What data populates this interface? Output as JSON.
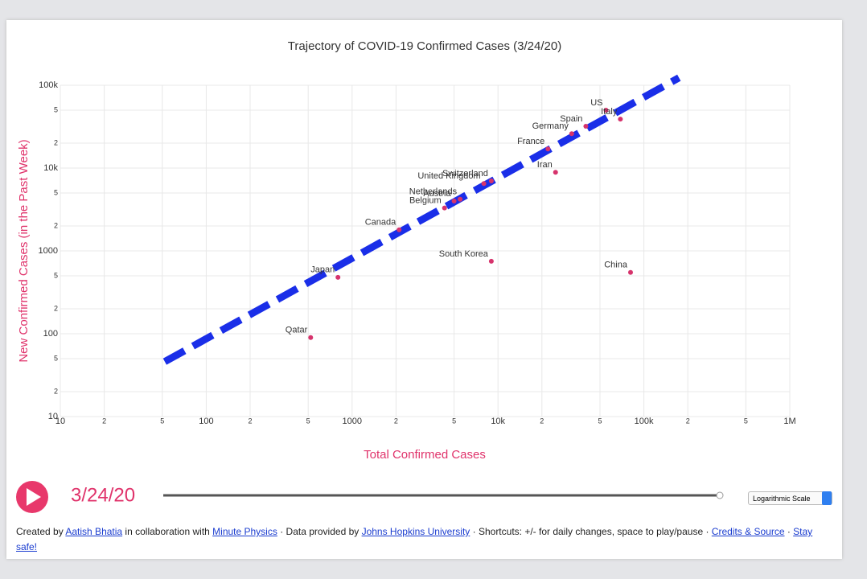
{
  "chart_data": {
    "type": "scatter",
    "title": "Trajectory of COVID-19 Confirmed Cases (3/24/20)",
    "xlabel": "Total Confirmed Cases",
    "ylabel": "New Confirmed Cases (in the Past Week)",
    "xscale": "log",
    "yscale": "log",
    "grid": true,
    "xlim": [
      10,
      1000000
    ],
    "ylim": [
      10,
      100000
    ],
    "xticks": [
      10,
      {
        "value": 20,
        "label": "2"
      },
      {
        "value": 50,
        "label": "5"
      },
      100,
      {
        "value": 200,
        "label": "2"
      },
      {
        "value": 500,
        "label": "5"
      },
      1000,
      {
        "value": 2000,
        "label": "2"
      },
      {
        "value": 5000,
        "label": "5"
      },
      {
        "value": 10000,
        "label": "10k"
      },
      {
        "value": 20000,
        "label": "2"
      },
      {
        "value": 50000,
        "label": "5"
      },
      {
        "value": 100000,
        "label": "100k"
      },
      {
        "value": 200000,
        "label": "2"
      },
      {
        "value": 500000,
        "label": "5"
      },
      {
        "value": 1000000,
        "label": "1M"
      }
    ],
    "yticks": [
      10,
      {
        "value": 20,
        "label": "2"
      },
      {
        "value": 50,
        "label": "5"
      },
      100,
      {
        "value": 200,
        "label": "2"
      },
      {
        "value": 500,
        "label": "5"
      },
      1000,
      {
        "value": 2000,
        "label": "2"
      },
      {
        "value": 5000,
        "label": "5"
      },
      {
        "value": 10000,
        "label": "10k"
      },
      {
        "value": 20000,
        "label": "2"
      },
      {
        "value": 50000,
        "label": "5"
      },
      {
        "value": 100000,
        "label": "100k"
      }
    ],
    "point_color": "#d6336c",
    "points": {
      "names": [
        "US",
        "Italy",
        "Spain",
        "Germany",
        "France",
        "Iran",
        "Switzerland",
        "United Kingdom",
        "Netherlands",
        "Austria",
        "Belgium",
        "Canada",
        "South Korea",
        "China",
        "Japan",
        "Qatar"
      ],
      "x": [
        55000,
        69000,
        40000,
        32000,
        22000,
        24800,
        9000,
        8000,
        5500,
        5000,
        4300,
        2100,
        9000,
        81000,
        800,
        520
      ],
      "y": [
        50000,
        39000,
        32000,
        26000,
        17000,
        8900,
        7000,
        6500,
        4200,
        4000,
        3300,
        1800,
        750,
        550,
        480,
        90
      ]
    },
    "reference_line": {
      "color": "#1a2ee8",
      "x": [
        52,
        174000
      ],
      "y": [
        46,
        123000
      ]
    }
  },
  "controls": {
    "date": "3/24/20",
    "scale_select": "Logarithmic Scale"
  },
  "footer": [
    {
      "text": "Created by "
    },
    {
      "text": "Aatish Bhatia",
      "link": true
    },
    {
      "text": " in collaboration with "
    },
    {
      "text": "Minute Physics",
      "link": true
    },
    {
      "text": " · Data provided by "
    },
    {
      "text": "Johns Hopkins University",
      "link": true
    },
    {
      "text": " · Shortcuts: +/- for daily changes, space to play/pause · "
    },
    {
      "text": "Credits & Source",
      "link": true
    },
    {
      "text": " · "
    },
    {
      "text": "Stay safe!",
      "link": true
    }
  ]
}
